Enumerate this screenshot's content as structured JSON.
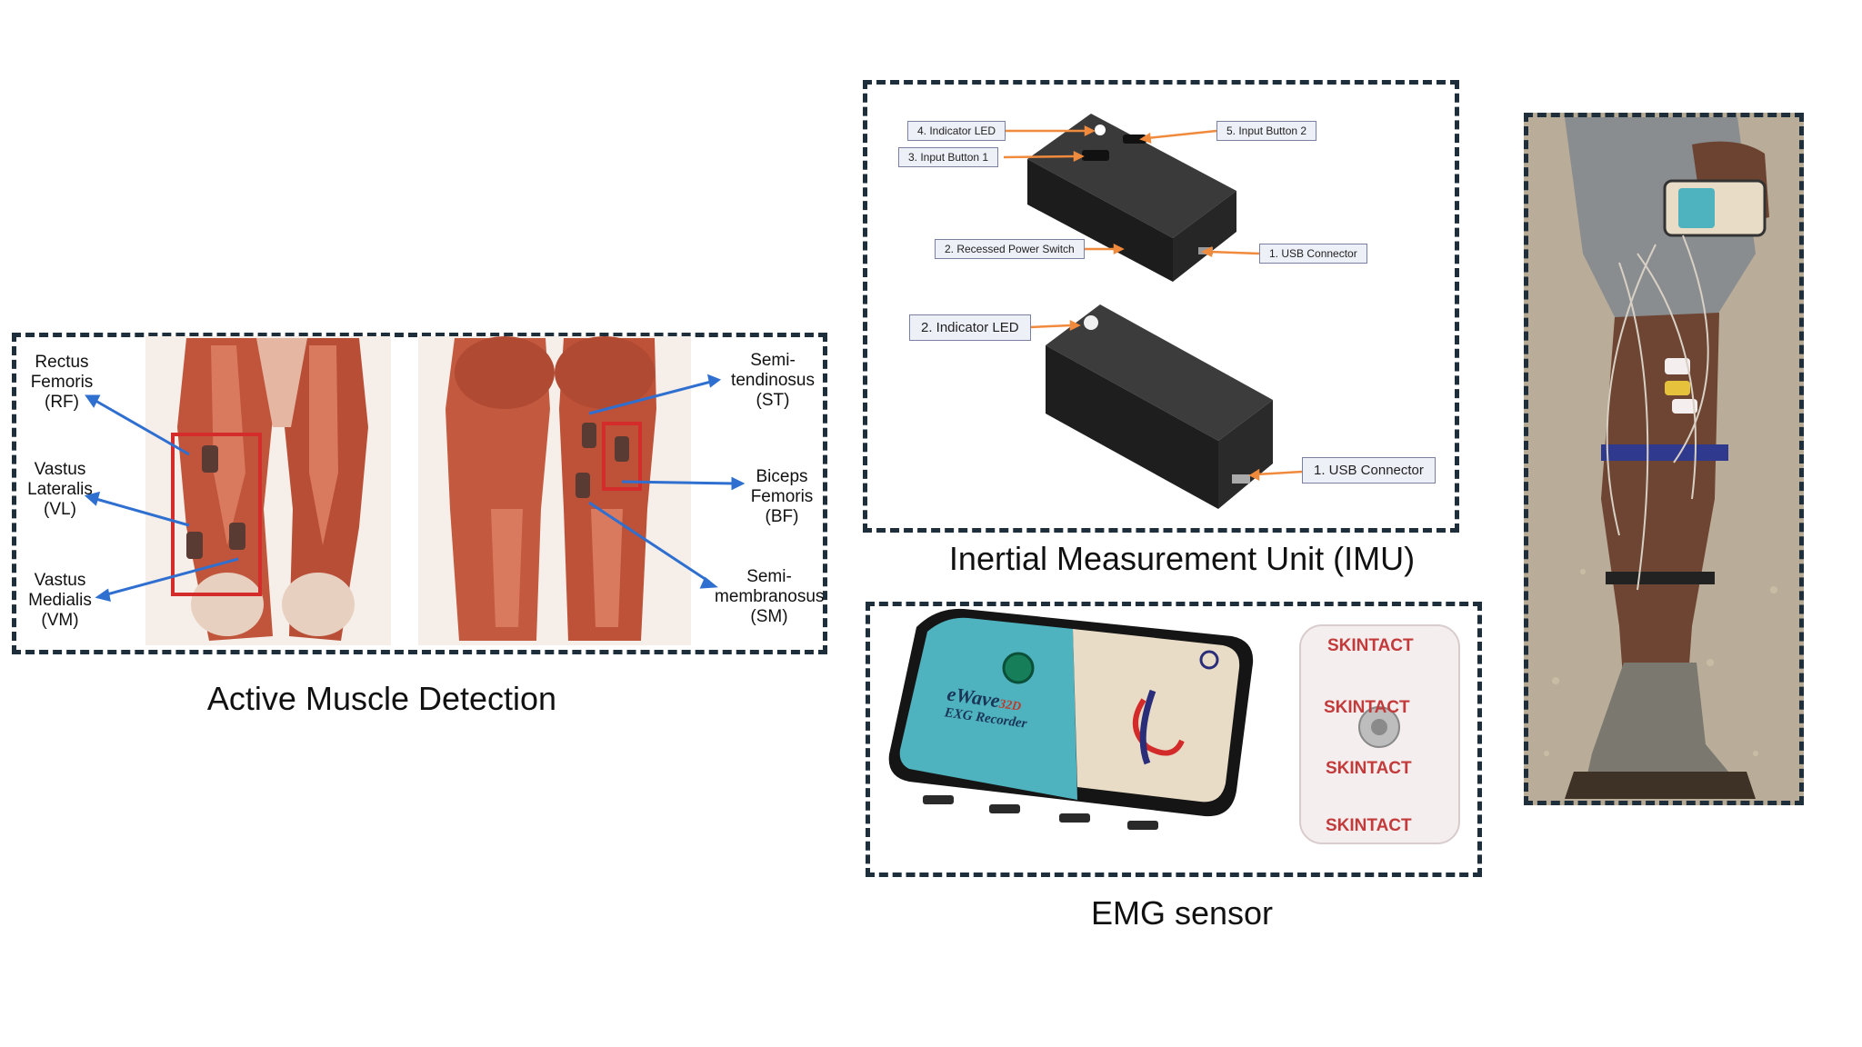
{
  "muscle_panel": {
    "caption": "Active Muscle Detection",
    "labels": {
      "rf": [
        "Rectus",
        "Femoris",
        "(RF)"
      ],
      "vl": [
        "Vastus",
        "Lateralis",
        "(VL)"
      ],
      "vm": [
        "Vastus",
        "Medialis",
        "(VM)"
      ],
      "st": [
        "Semi-",
        "tendinosus",
        "(ST)"
      ],
      "bf": [
        "Biceps",
        "Femoris",
        "(BF)"
      ],
      "sm": [
        "Semi-",
        "membranosus",
        "(SM)"
      ]
    }
  },
  "imu_panel": {
    "caption": "Inertial Measurement Unit (IMU)",
    "tags": {
      "indicator_led_top": "4. Indicator LED",
      "input_button_2": "5. Input Button 2",
      "input_button_1": "3. Input Button 1",
      "power_switch": "2. Recessed Power Switch",
      "usb_top": "1. USB Connector",
      "indicator_led_bottom": "2. Indicator LED",
      "usb_bottom": "1. USB Connector"
    }
  },
  "emg_panel": {
    "caption": "EMG sensor",
    "device_brand": "eWave",
    "device_model": "32D",
    "device_name": "EXG Recorder",
    "electrode_brand": "SKINTACT"
  },
  "colors": {
    "panel_border": "#1e2f3b",
    "arrow_blue": "#2f6fd0",
    "highlight_red": "#d42b2b",
    "callout_orange": "#f08a3c",
    "device_teal": "#4fb3bf"
  }
}
